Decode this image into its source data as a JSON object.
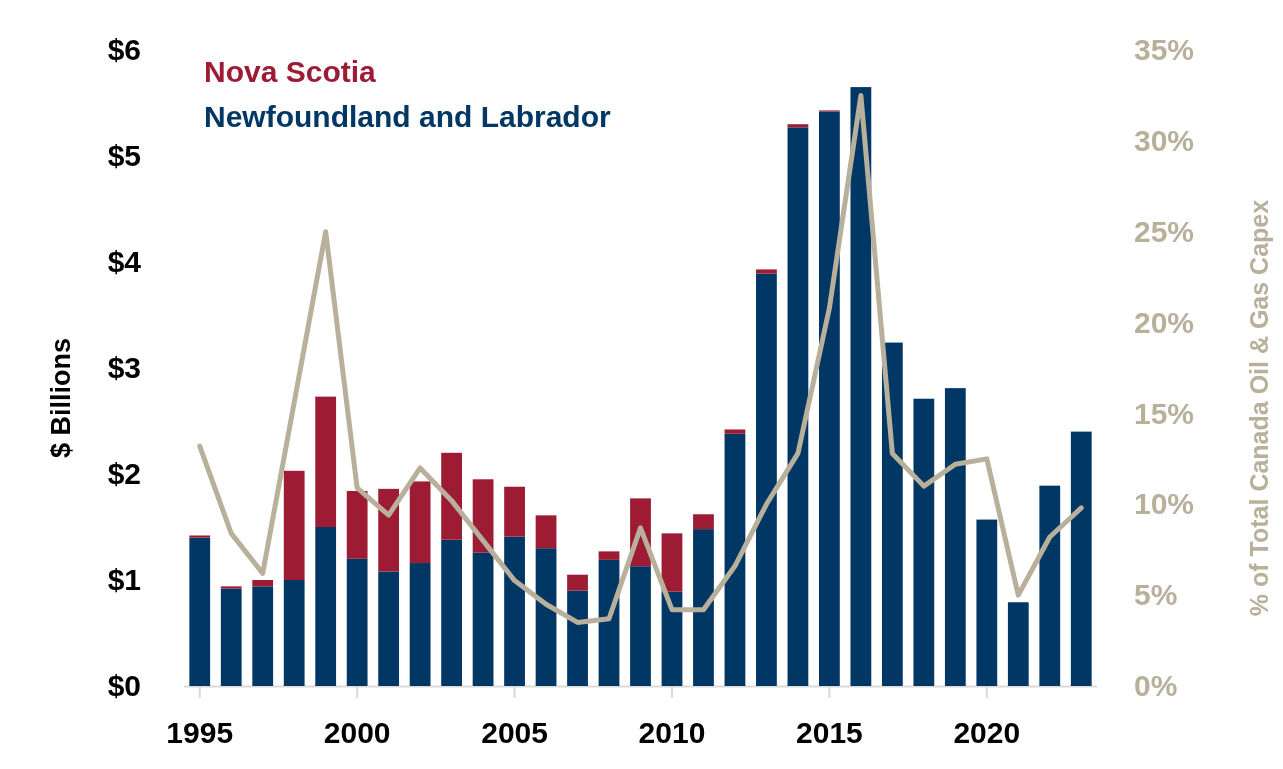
{
  "chart_data": {
    "type": "bar",
    "stacked": true,
    "ylabel": "$ Billions",
    "y2label": "% of Total Canada Oil & Gas Capex",
    "categories": [
      "1995",
      null,
      null,
      null,
      null,
      "2000",
      null,
      null,
      null,
      null,
      "2005",
      null,
      null,
      null,
      null,
      "2010",
      null,
      null,
      null,
      null,
      "2015",
      null,
      null,
      null,
      null,
      "2020",
      null,
      null,
      null
    ],
    "series": [
      {
        "name": "Newfoundland and Labrador",
        "color": "#003764",
        "values": [
          1.4,
          0.92,
          0.94,
          1.0,
          1.5,
          1.2,
          1.08,
          1.16,
          1.38,
          1.26,
          1.41,
          1.3,
          0.9,
          1.19,
          1.13,
          0.89,
          1.48,
          2.38,
          3.89,
          5.27,
          5.42,
          5.65,
          3.24,
          2.71,
          2.81,
          1.57,
          0.79,
          1.89,
          2.4
        ]
      },
      {
        "name": "Nova Scotia",
        "color": "#9e1b34",
        "values": [
          0.02,
          0.02,
          0.06,
          1.03,
          1.23,
          0.64,
          0.78,
          0.77,
          0.82,
          0.69,
          0.47,
          0.31,
          0.15,
          0.08,
          0.64,
          0.55,
          0.14,
          0.04,
          0.04,
          0.03,
          0.01,
          0,
          0,
          0,
          0,
          0,
          0,
          0,
          0
        ]
      },
      {
        "type": "line",
        "axis": "y2",
        "color": "#b8b09b",
        "values": [
          13.2,
          8.4,
          6.2,
          15.6,
          25.0,
          10.9,
          9.4,
          12.0,
          10.2,
          8.0,
          5.8,
          4.5,
          3.5,
          3.7,
          8.7,
          4.2,
          4.2,
          6.6,
          10.0,
          12.8,
          20.8,
          32.5,
          12.8,
          11.0,
          12.2,
          12.5,
          5.0,
          8.2,
          9.8
        ]
      }
    ],
    "ylim": [
      0,
      6
    ],
    "yticks": [
      {
        "value": 0,
        "label": "$0"
      },
      {
        "value": 1,
        "label": "$1"
      },
      {
        "value": 2,
        "label": "$2"
      },
      {
        "value": 3,
        "label": "$3"
      },
      {
        "value": 4,
        "label": "$4"
      },
      {
        "value": 5,
        "label": "$5"
      },
      {
        "value": 6,
        "label": "$6"
      }
    ],
    "y2lim": [
      0,
      35
    ],
    "y2ticks": [
      {
        "value": 0,
        "label": "0%"
      },
      {
        "value": 5,
        "label": "5%"
      },
      {
        "value": 10,
        "label": "10%"
      },
      {
        "value": 15,
        "label": "15%"
      },
      {
        "value": 20,
        "label": "20%"
      },
      {
        "value": 25,
        "label": "25%"
      },
      {
        "value": 30,
        "label": "30%"
      },
      {
        "value": 35,
        "label": "35%"
      }
    ],
    "grid": false,
    "legend": "top left",
    "marker": "none",
    "line_style": "solid"
  }
}
